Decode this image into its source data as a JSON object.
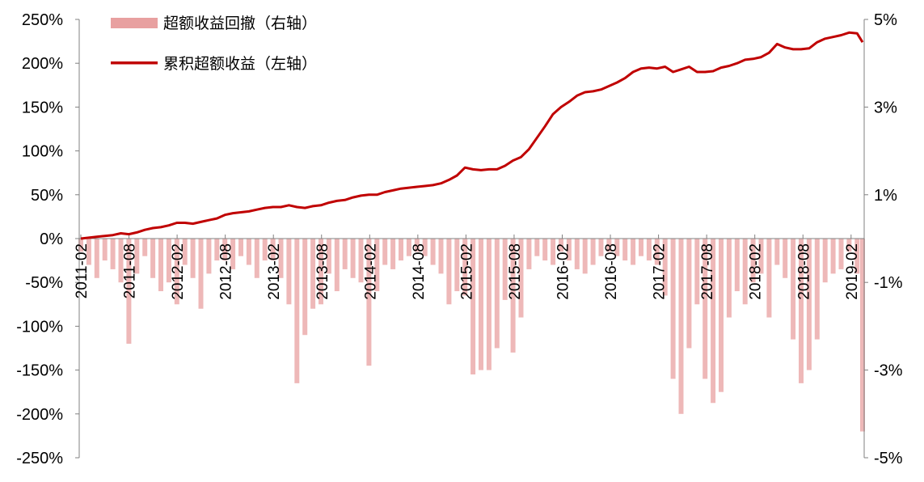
{
  "chart_data": {
    "type": "line+bar",
    "title": "",
    "legend": [
      {
        "name": "超额收益回撤（右轴）",
        "type": "bar",
        "color": "#e8a0a0",
        "axis": "right"
      },
      {
        "name": "累积超额收益（左轴）",
        "type": "line",
        "color": "#c00000",
        "axis": "left"
      }
    ],
    "legend_placement": "top-left",
    "left_axis": {
      "ylim": [
        -250,
        250
      ],
      "ticks": [
        "250%",
        "200%",
        "150%",
        "100%",
        "50%",
        "0%",
        "-50%",
        "-100%",
        "-150%",
        "-200%",
        "-250%"
      ]
    },
    "right_axis": {
      "ylim": [
        -5,
        5
      ],
      "ticks": [
        "5%",
        "3%",
        "1%",
        "-1%",
        "-3%",
        "-5%"
      ]
    },
    "x_tick_labels": [
      "2011-02",
      "2011-08",
      "2012-02",
      "2012-08",
      "2013-02",
      "2013-08",
      "2014-02",
      "2014-08",
      "2015-02",
      "2015-08",
      "2016-02",
      "2016-08",
      "2017-02",
      "2017-08",
      "2018-02",
      "2018-08",
      "2019-02"
    ],
    "x_start": "2011-02",
    "x_frequency": "monthly",
    "grid": false,
    "series": [
      {
        "name": "累积超额收益（左轴）",
        "unit": "%",
        "values": [
          0,
          1,
          2,
          3,
          4,
          6,
          5,
          7,
          10,
          12,
          13,
          15,
          18,
          18,
          17,
          19,
          21,
          23,
          27,
          29,
          30,
          31,
          33,
          35,
          36,
          36,
          38,
          36,
          35,
          37,
          38,
          41,
          43,
          44,
          47,
          49,
          50,
          50,
          53,
          55,
          57,
          58,
          59,
          60,
          61,
          63,
          67,
          72,
          81,
          79,
          78,
          79,
          79,
          83,
          89,
          93,
          102,
          115,
          128,
          142,
          150,
          156,
          163,
          167,
          168,
          170,
          174,
          178,
          183,
          190,
          194,
          195,
          194,
          196,
          190,
          193,
          196,
          190,
          190,
          191,
          195,
          197,
          200,
          204,
          205,
          207,
          212,
          222,
          218,
          216,
          216,
          217,
          224,
          228,
          230,
          232,
          235,
          234,
          224
        ]
      },
      {
        "name": "超额收益回撤（右轴）",
        "unit": "%",
        "values": [
          -0.3,
          -0.6,
          -0.9,
          -0.5,
          -0.7,
          -1.0,
          -2.4,
          -0.8,
          -0.4,
          -0.9,
          -1.2,
          -1.0,
          -1.5,
          -0.6,
          -0.9,
          -1.6,
          -0.8,
          -0.5,
          -0.5,
          -0.7,
          -0.4,
          -0.6,
          -0.9,
          -0.5,
          -0.5,
          -0.9,
          -1.5,
          -3.3,
          -2.2,
          -1.6,
          -1.5,
          -0.8,
          -1.2,
          -0.7,
          -0.9,
          -1.0,
          -2.9,
          -1.2,
          -0.6,
          -0.7,
          -0.5,
          -0.4,
          -0.3,
          -0.4,
          -0.6,
          -0.8,
          -1.5,
          -1.2,
          -1.3,
          -3.1,
          -3.0,
          -3.0,
          -2.5,
          -1.4,
          -2.6,
          -1.8,
          -0.7,
          -0.4,
          -0.5,
          -0.6,
          -0.3,
          -0.5,
          -0.7,
          -0.8,
          -0.6,
          -0.4,
          -0.3,
          -0.4,
          -0.5,
          -0.6,
          -0.4,
          -0.5,
          -0.6,
          -1.3,
          -3.2,
          -4.0,
          -2.5,
          -1.5,
          -3.2,
          -3.75,
          -3.5,
          -1.8,
          -1.2,
          -1.5,
          -1.0,
          -0.8,
          -1.8,
          -0.6,
          -0.9,
          -2.3,
          -3.3,
          -3.0,
          -2.3,
          -1.0,
          -0.8,
          -0.7,
          -0.3,
          -0.8,
          -4.4
        ]
      }
    ]
  }
}
